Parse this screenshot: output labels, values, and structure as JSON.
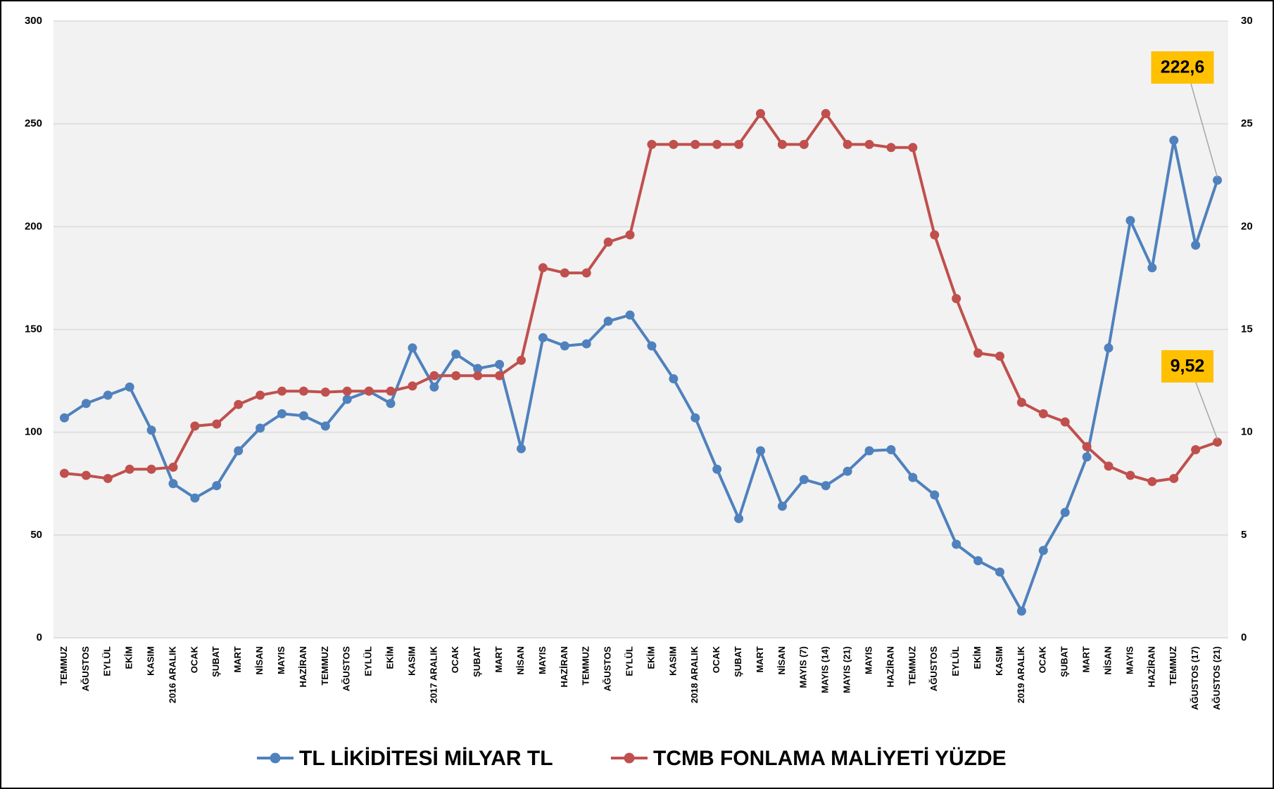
{
  "chart_data": {
    "type": "line",
    "categories": [
      "TEMMUZ",
      "AĞUSTOS",
      "EYLÜL",
      "EKİM",
      "KASIM",
      "2016 ARALIK",
      "OCAK",
      "ŞUBAT",
      "MART",
      "NİSAN",
      "MAYIS",
      "HAZİRAN",
      "TEMMUZ",
      "AĞUSTOS",
      "EYLÜL",
      "EKİM",
      "KASIM",
      "2017 ARALIK",
      "OCAK",
      "ŞUBAT",
      "MART",
      "NİSAN",
      "MAYIS",
      "HAZİRAN",
      "TEMMUZ",
      "AĞUSTOS",
      "EYLÜL",
      "EKİM",
      "KASIM",
      "2018 ARALIK",
      "OCAK",
      "ŞUBAT",
      "MART",
      "NİSAN",
      "MAYIS (7)",
      "MAYIS (14)",
      "MAYIS (21)",
      "MAYIS",
      "HAZİRAN",
      "TEMMUZ",
      "AĞUSTOS",
      "EYLÜL",
      "EKİM",
      "KASIM",
      "2019 ARALIK",
      "OCAK",
      "ŞUBAT",
      "MART",
      "NİSAN",
      "MAYIS",
      "HAZİRAN",
      "TEMMUZ",
      "AĞUSTOS (17)",
      "AĞUSTOS (21)"
    ],
    "series": [
      {
        "name": "TL LİKİDİTESİ MİLYAR TL",
        "color": "#4f81bd",
        "values": [
          107,
          114,
          118,
          122,
          101,
          75,
          68,
          74,
          91,
          102,
          109,
          108,
          103,
          116,
          120,
          114,
          141,
          122,
          138,
          131,
          133,
          92,
          146,
          142,
          143,
          154,
          157,
          142,
          126,
          107,
          82,
          58,
          91,
          64,
          77,
          74,
          81,
          91,
          91.5,
          78,
          69.5,
          45.5,
          37.5,
          32,
          13,
          42.5,
          61,
          88,
          141,
          203,
          180,
          242,
          191,
          222.6
        ],
        "value_labels": [
          null,
          null,
          null,
          null,
          null,
          null,
          null,
          null,
          null,
          null,
          null,
          null,
          null,
          null,
          null,
          null,
          null,
          null,
          null,
          null,
          null,
          null,
          null,
          null,
          null,
          null,
          null,
          null,
          null,
          null,
          null,
          null,
          null,
          null,
          null,
          null,
          null,
          null,
          null,
          null,
          null,
          null,
          null,
          null,
          null,
          null,
          null,
          null,
          null,
          null,
          null,
          null,
          null,
          "222,6"
        ]
      },
      {
        "name": "TCMB FONLAMA MALİYETİ YÜZDE",
        "color": "#c0504d",
        "axis": "y2",
        "values": [
          8.0,
          7.9,
          7.75,
          8.2,
          8.2,
          8.3,
          10.3,
          10.4,
          11.35,
          11.8,
          12.0,
          12.0,
          11.95,
          12.0,
          12.0,
          12.0,
          12.25,
          12.75,
          12.75,
          12.75,
          12.75,
          13.5,
          18.0,
          17.75,
          17.75,
          19.25,
          19.6,
          24.0,
          24.0,
          24.0,
          24.0,
          24.0,
          25.5,
          24.0,
          24.0,
          25.5,
          24.0,
          24.0,
          23.85,
          23.85,
          19.6,
          16.5,
          13.85,
          13.7,
          11.45,
          10.9,
          10.5,
          9.3,
          8.35,
          7.9,
          7.6,
          7.75,
          9.15,
          9.52
        ],
        "value_labels": [
          null,
          null,
          null,
          null,
          null,
          null,
          null,
          null,
          null,
          null,
          null,
          null,
          null,
          null,
          null,
          null,
          null,
          null,
          null,
          null,
          null,
          null,
          null,
          null,
          null,
          null,
          null,
          null,
          null,
          null,
          null,
          null,
          null,
          null,
          null,
          null,
          null,
          null,
          null,
          null,
          null,
          null,
          null,
          null,
          null,
          null,
          null,
          null,
          null,
          null,
          null,
          null,
          null,
          "9,52"
        ]
      }
    ],
    "ylim": [
      0,
      300
    ],
    "yticks": [
      0,
      50,
      100,
      150,
      200,
      250,
      300
    ],
    "y2lim": [
      0,
      30
    ],
    "y2ticks": [
      0,
      5,
      10,
      15,
      20,
      25,
      30
    ],
    "grid": true,
    "legend": "bottom",
    "annotation_color": "#ffc000"
  }
}
